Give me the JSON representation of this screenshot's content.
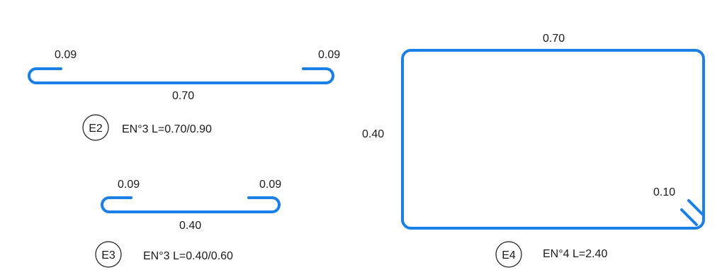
{
  "bars": {
    "e2": {
      "hook_left": "0.09",
      "hook_right": "0.09",
      "length": "0.70",
      "mark": "E2",
      "spec": "EN°3 L=0.70/0.90"
    },
    "e3": {
      "hook_left": "0.09",
      "hook_right": "0.09",
      "length": "0.40",
      "mark": "E3",
      "spec": "EN°3 L=0.40/0.60"
    },
    "e4": {
      "width": "0.70",
      "height": "0.40",
      "hook": "0.10",
      "mark": "E4",
      "spec": "EN°4 L=2.40"
    }
  },
  "colors": {
    "bar": "#1a7fe6",
    "text": "#1a1a1a"
  }
}
